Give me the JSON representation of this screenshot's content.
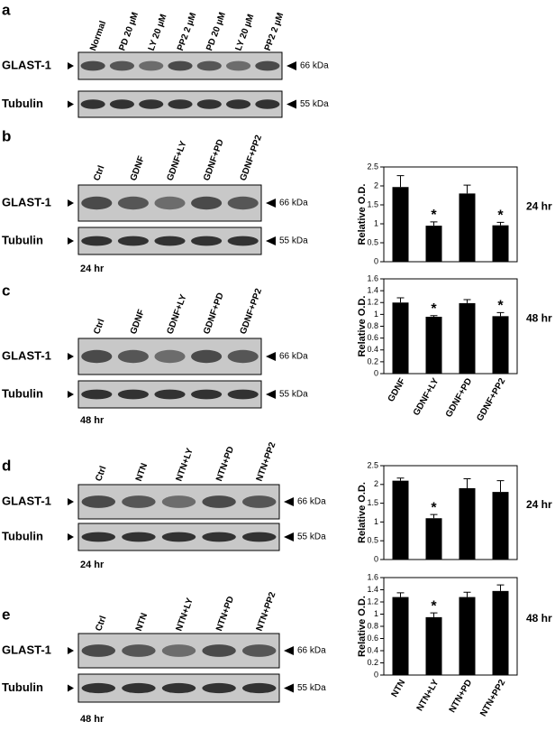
{
  "panels": [
    {
      "letter": "a",
      "lanes": [
        "Normal",
        "PD 20 µM",
        "LY 20 µM",
        "PP2 2 µM",
        "PD 20 µM",
        "LY 20 µM",
        "PP2 2 µM"
      ],
      "rows": [
        {
          "label": "GLAST-1",
          "marker": "66 kDa"
        },
        {
          "label": "Tubulin",
          "marker": "55 kDa"
        }
      ]
    },
    {
      "letter": "b",
      "lanes": [
        "Ctrl",
        "GDNF",
        "GDNF+LY",
        "GDNF+PD",
        "GDNF+PP2"
      ],
      "rows": [
        {
          "label": "GLAST-1",
          "marker": "66 kDa"
        },
        {
          "label": "Tubulin",
          "marker": "55 kDa"
        }
      ],
      "time": "24 hr"
    },
    {
      "letter": "c",
      "lanes": [
        "Ctrl",
        "GDNF",
        "GDNF+LY",
        "GDNF+PD",
        "GDNF+PP2"
      ],
      "rows": [
        {
          "label": "GLAST-1",
          "marker": "66 kDa"
        },
        {
          "label": "Tubulin",
          "marker": "55 kDa"
        }
      ],
      "time": "48 hr"
    },
    {
      "letter": "d",
      "lanes": [
        "Ctrl",
        "NTN",
        "NTN+LY",
        "NTN+PD",
        "NTN+PP2"
      ],
      "rows": [
        {
          "label": "GLAST-1",
          "marker": "66 kDa"
        },
        {
          "label": "Tubulin",
          "marker": "55 kDa"
        }
      ],
      "time": "24 hr"
    },
    {
      "letter": "e",
      "lanes": [
        "Ctrl",
        "NTN",
        "NTN+LY",
        "NTN+PD",
        "NTN+PP2"
      ],
      "rows": [
        {
          "label": "GLAST-1",
          "marker": "66 kDa"
        },
        {
          "label": "Tubulin",
          "marker": "55 kDa"
        }
      ],
      "time": "48 hr"
    }
  ],
  "chart_data": [
    {
      "type": "bar",
      "y_label": "Relative O.D.",
      "side_label": "24 hr",
      "color": "#000000",
      "categories": [
        null,
        null,
        null,
        null
      ],
      "values": [
        1.97,
        0.95,
        1.8,
        0.96
      ],
      "errors": [
        0.3,
        0.1,
        0.22,
        0.08
      ],
      "significance": [
        null,
        "*",
        null,
        "*"
      ],
      "ylim": [
        0,
        2.5
      ],
      "yticks": [
        0,
        0.5,
        1,
        1.5,
        2,
        2.5
      ]
    },
    {
      "type": "bar",
      "y_label": "Relative O.D.",
      "side_label": "48 hr",
      "color": "#000000",
      "categories": [
        "GDNF",
        "GDNF+LY",
        "GDNF+PD",
        "GDNF+PP2"
      ],
      "values": [
        1.2,
        0.96,
        1.19,
        0.97
      ],
      "errors": [
        0.08,
        0.02,
        0.06,
        0.06
      ],
      "significance": [
        null,
        "*",
        null,
        "*"
      ],
      "ylim": [
        0,
        1.6
      ],
      "yticks": [
        0,
        0.2,
        0.4,
        0.6,
        0.8,
        1,
        1.2,
        1.4,
        1.6
      ]
    },
    {
      "type": "bar",
      "y_label": "Relative O.D.",
      "side_label": "24 hr",
      "color": "#000000",
      "categories": [
        null,
        null,
        null,
        null
      ],
      "values": [
        2.1,
        1.1,
        1.9,
        1.8
      ],
      "errors": [
        0.07,
        0.1,
        0.25,
        0.3
      ],
      "significance": [
        null,
        "*",
        null,
        null
      ],
      "ylim": [
        0,
        2.5
      ],
      "yticks": [
        0,
        0.5,
        1,
        1.5,
        2,
        2.5
      ]
    },
    {
      "type": "bar",
      "y_label": "Relative O.D.",
      "side_label": "48 hr",
      "color": "#000000",
      "categories": [
        "NTN",
        "NTN+LY",
        "NTN+PD",
        "NTN+PP2"
      ],
      "values": [
        1.28,
        0.95,
        1.28,
        1.38
      ],
      "errors": [
        0.07,
        0.07,
        0.08,
        0.1
      ],
      "significance": [
        null,
        "*",
        null,
        null
      ],
      "ylim": [
        0,
        1.6
      ],
      "yticks": [
        0,
        0.2,
        0.4,
        0.6,
        0.8,
        1,
        1.2,
        1.4,
        1.6
      ]
    }
  ]
}
